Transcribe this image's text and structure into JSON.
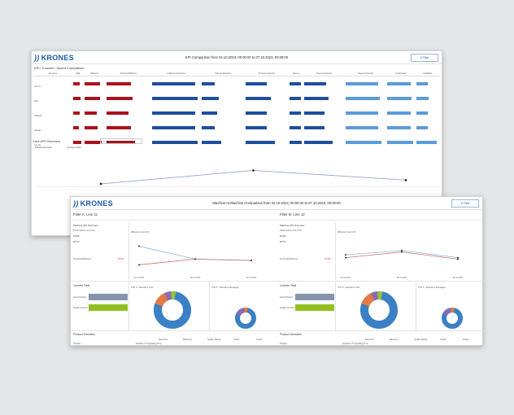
{
  "back": {
    "logo": "KRONES",
    "title": "KPI Comparison from 04.10.2023, 00:00:00 to 07.10.2023, 00:00:00",
    "filter_label": "Filter",
    "section_title": "KPI / Counter / Speed Comparison",
    "table_header_first": "Resource",
    "columns": [
      "OEE",
      "Efficiency",
      "Technical Efficiency",
      "Unplanned Downtime",
      "Planned Downtime",
      "Produced Quantity",
      "Speed",
      "Rejected Quantity",
      "Rejected Quantity",
      "Quality Rate",
      "Availability"
    ],
    "rows": [
      {
        "name": "Line 01",
        "cells": [
          0.7,
          0.75,
          0.55,
          0.9,
          0.3,
          0.5,
          0.9,
          0.55,
          0.8,
          0.85,
          0.5
        ]
      },
      {
        "name": "Filler",
        "cells": [
          0.8,
          0.75,
          0.6,
          0.95,
          0.4,
          0.6,
          0.9,
          0.6,
          0.85,
          0.9,
          0.55
        ]
      },
      {
        "name": "Palletizer",
        "cells": [
          0.7,
          0.6,
          0.5,
          0.9,
          0.35,
          0.5,
          0.85,
          0.5,
          0.8,
          0.85,
          0.5
        ]
      },
      {
        "name": "Labeller",
        "cells": [
          0.6,
          0.65,
          0.55,
          0.9,
          0.3,
          0.5,
          0.9,
          0.5,
          0.8,
          0.85,
          0.5
        ]
      },
      {
        "name": "Line 02",
        "cells": [
          0.9,
          0.85,
          0.65,
          0.95,
          0.45,
          0.7,
          0.95,
          0.7,
          0.9,
          0.95,
          0.9
        ]
      }
    ],
    "line_title": "Line KPI Overview",
    "line_select": "OEE",
    "legend": [
      "Measured Value",
      "Target Value"
    ],
    "chart_data": {
      "type": "line",
      "x": [
        "04.10.2023",
        "05.10.2023",
        "06.10.2023"
      ],
      "series": [
        {
          "name": "Measured Value",
          "values": [
            62,
            80,
            67
          ]
        },
        {
          "name": "Target Value",
          "values": [
            30,
            40,
            36
          ]
        }
      ]
    }
  },
  "front": {
    "logo": "KRONES",
    "title": "Machine-to-Machine Comparison from 04.10.2023, 00:00:00 to 07.10.2023, 00:00:00",
    "filter_label": "Filter",
    "left": {
      "filter": "Filter A: Line 11",
      "kpi_title": "Machine KPI Overview",
      "kpi_sub": "Performance Line Time",
      "v1": "ØOEE",
      "v2": "ØTPM",
      "tech_label": "Technical Efficiency",
      "tech_value": "72.4%",
      "eff_title": "Efficiency trend (%)",
      "counter_title": "Counter Total",
      "counter_labels": [
        "Good Product",
        "Quality Product"
      ],
      "top5_title": "TOP 5 - Downtime Cost",
      "top5b_title": "TOP 5 - Downtime Messages",
      "prod_title": "Product Overview",
      "prod_cols": [
        "Resource",
        "Efficiency",
        "Quality Rating",
        "Infeed",
        "Output"
      ],
      "prod_row": [
        "Product",
        "Duration Of Operating Time",
        "01:00:00"
      ],
      "chart_data": {
        "type": "line",
        "x": [
          "04.10.2023",
          "05.10.2023",
          "06.10.2023"
        ],
        "series": [
          {
            "name": "Efficiency",
            "values": [
              78,
              60,
              58
            ]
          },
          {
            "name": "Target",
            "values": [
              52,
              60,
              58
            ]
          }
        ]
      }
    },
    "right": {
      "filter": "Filter B: Line 12",
      "kpi_title": "Machine KPI Overview",
      "kpi_sub": "Performance Line Time",
      "v1": "ØOEE",
      "v2": "ØTPM",
      "tech_label": "Technical Efficiency",
      "tech_value": "74.1%",
      "eff_title": "Efficiency trend (%)",
      "counter_title": "Counter Total",
      "counter_labels": [
        "Good Product",
        "Quality Product"
      ],
      "top5_title": "TOP 5 - Downtime Cost",
      "top5b_title": "TOP 5 - Downtime Messages",
      "prod_title": "Product Overview",
      "prod_cols": [
        "Resource",
        "Efficiency",
        "Quality Rating",
        "Infeed",
        "Output"
      ],
      "prod_row": [
        "Product",
        "Duration Of Operating Time",
        "01:00:00"
      ],
      "chart_data": {
        "type": "line",
        "x": [
          "04.10.2023",
          "05.10.2023",
          "06.10.2023"
        ],
        "series": [
          {
            "name": "Efficiency",
            "values": [
              66,
              72,
              62
            ]
          },
          {
            "name": "Target",
            "values": [
              62,
              70,
              60
            ]
          }
        ]
      }
    }
  }
}
